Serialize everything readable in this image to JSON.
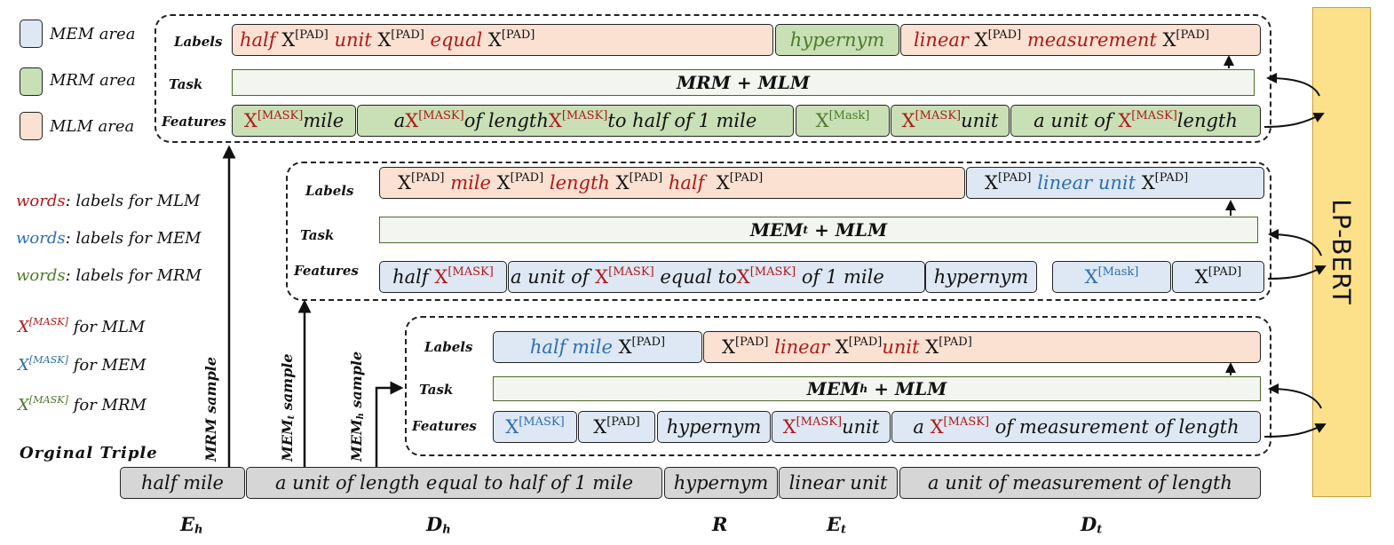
{
  "legend": {
    "mem_area": "MEM area",
    "mrm_area": "MRM area",
    "mlm_area": "MLM area",
    "words": "words",
    "labels_mlm": ": labels for MLM",
    "labels_mem": ": labels for MEM",
    "labels_mrm": ": labels for MRM",
    "mask_X": "X",
    "mask_sup": "[MASK]",
    "for_mlm": " for MLM",
    "for_mem": " for MEM",
    "for_mrm": " for MRM",
    "original_triple": "Orginal Triple"
  },
  "colors": {
    "mem_area": "#dde8f4",
    "mrm_area": "#c9e0b6",
    "mlm_area": "#fbe1d2",
    "mlm_label_text": "#b01818",
    "mem_label_text": "#2f6db0",
    "mrm_label_text": "#4d7a2a",
    "lp_bert": "#fde08a"
  },
  "row_labels": {
    "labels": "Labels",
    "task": "Task",
    "features": "Features"
  },
  "tokens": {
    "X": "X",
    "pad": "[PAD]",
    "mask": "[MASK]",
    "mask_mixed": "[Mask]"
  },
  "mrm": {
    "task": {
      "main": "MRM + MLM"
    },
    "labels": {
      "l1": [
        "half",
        "unit",
        "equal"
      ],
      "l2": "hypernym",
      "l3": [
        "linear",
        "measurement"
      ]
    },
    "features": {
      "f1": "mile",
      "f2": [
        "a ",
        "of length",
        "to half of 1 mile"
      ],
      "f4": "unit",
      "f5": [
        "a unit of",
        "length"
      ]
    }
  },
  "memt": {
    "task": {
      "main": "MEM",
      "sub": "t",
      "rest": " + MLM"
    },
    "labels": {
      "l1": [
        "mile",
        "length",
        "half"
      ],
      "l2": "linear unit"
    },
    "features": {
      "f1": "half ",
      "f2": [
        "a unit of ",
        " equal to",
        " of 1 mile"
      ],
      "f3": "hypernym"
    }
  },
  "memh": {
    "task": {
      "main": "MEM",
      "sub": "h",
      "rest": " + MLM"
    },
    "labels": {
      "l1": "half mile",
      "l2": [
        "linear",
        "unit"
      ]
    },
    "features": {
      "f3": "hypernym",
      "f4": "unit",
      "f5": [
        "a ",
        " of measurement of length"
      ]
    }
  },
  "samples": {
    "mrm": "MRM sample",
    "memt": {
      "main": "MEM",
      "sub": "t",
      "rest": " sample"
    },
    "memh": {
      "main": "MEM",
      "sub": "h",
      "rest": " sample"
    }
  },
  "triple": {
    "eh": "half mile",
    "dh": "a unit of length equal to half of 1 mile",
    "r": "hypernym",
    "et": "linear unit",
    "dt": "a unit of measurement of length"
  },
  "axis": {
    "eh": {
      "main": "E",
      "sub": "h"
    },
    "dh": {
      "main": "D",
      "sub": "h"
    },
    "r": {
      "main": "R"
    },
    "et": {
      "main": "E",
      "sub": "t"
    },
    "dt": {
      "main": "D",
      "sub": "t"
    }
  },
  "model": {
    "name": "LP-BERT"
  }
}
